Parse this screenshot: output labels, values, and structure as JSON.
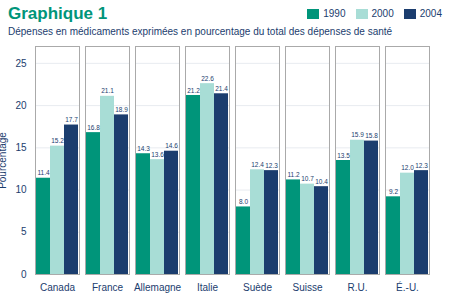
{
  "chart_data": {
    "type": "bar",
    "title": "Graphique 1",
    "subtitle": "Dépenses en médicaments exprimées en pourcentage du total des dépenses de santé",
    "ylabel": "Pourcentage",
    "categories": [
      "Canada",
      "France",
      "Allemagne",
      "Italie",
      "Suède",
      "Suisse",
      "R.U.",
      "É.-U."
    ],
    "series": [
      {
        "name": "1990",
        "color": "#00957a",
        "values": [
          11.4,
          16.8,
          14.3,
          21.2,
          8.0,
          11.2,
          13.5,
          9.2
        ],
        "value_labels": [
          "11.4",
          "16.8",
          "14.3",
          "21.2",
          "8.0",
          "11.2",
          "13.5",
          "9.2"
        ]
      },
      {
        "name": "2000",
        "color": "#a8ddd6",
        "values": [
          15.2,
          21.1,
          13.6,
          22.6,
          12.4,
          10.7,
          15.9,
          12.0
        ],
        "value_labels": [
          "15.2",
          "21.1",
          "13.6",
          "22.6",
          "12.4",
          "10.7",
          "15.9",
          "12.0"
        ]
      },
      {
        "name": "2004",
        "color": "#1b3d6e",
        "values": [
          17.7,
          18.9,
          14.6,
          21.4,
          12.3,
          10.4,
          15.8,
          12.3
        ],
        "value_labels": [
          "17.7",
          "18.9",
          "14.6",
          "21.4",
          "12.3",
          "10.4",
          "15.8",
          "12.3"
        ]
      }
    ],
    "ylim": [
      0,
      27
    ],
    "yticks": [
      0,
      5,
      10,
      15,
      20,
      25
    ],
    "grid": true,
    "legend": "upper right",
    "data_labels": true
  }
}
